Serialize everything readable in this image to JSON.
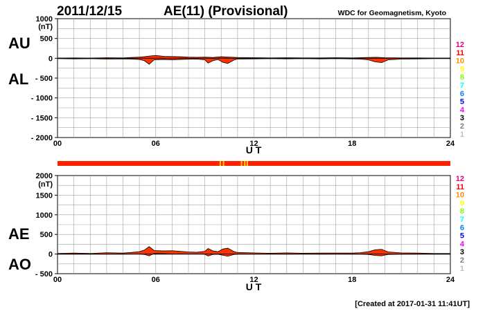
{
  "header": {
    "date": "2011/12/15",
    "title": "AE(11) (Provisional)",
    "source": "WDC for Geomagnetism, Kyoto"
  },
  "footer": {
    "created": "[Created at 2017-01-31 11:41UT]"
  },
  "station_scale": {
    "labels": [
      "12",
      "11",
      "10",
      "9",
      "8",
      "7",
      "6",
      "5",
      "4",
      "3",
      "2",
      "1"
    ],
    "colors": [
      "#e4007f",
      "#ff0000",
      "#ff8c00",
      "#ffff00",
      "#7fff00",
      "#00ffff",
      "#0080ff",
      "#0000ff",
      "#ff00ff",
      "#000000",
      "#808080",
      "#c0c0c0"
    ]
  },
  "station_bar": {
    "base_color": "#ff2000",
    "highlight_color": "#ffd700",
    "highlight_hours": [
      9.9,
      10.1,
      11.2,
      11.4,
      11.55
    ]
  },
  "chart_data": [
    {
      "type": "area",
      "panel": "AU/AL",
      "side_labels": [
        "AU",
        "AL"
      ],
      "unit": "(nT)",
      "xlabel": "U T",
      "ylim": [
        -2000,
        1000
      ],
      "yticks": [
        1000,
        500,
        0,
        -500,
        -1000,
        -1500,
        -2000
      ],
      "ytick_labels": [
        "1000",
        "500",
        "0",
        "- 500",
        "- 1000",
        "- 1500",
        "- 2000"
      ],
      "xlim": [
        0,
        24
      ],
      "xticks": [
        0,
        6,
        12,
        18,
        24
      ],
      "xtick_labels": [
        "00",
        "06",
        "12",
        "18",
        "24"
      ],
      "grid": true,
      "series": [
        {
          "x": [
            0,
            1,
            2,
            3,
            4,
            4.5,
            5,
            5.3,
            5.7,
            6,
            6.5,
            7,
            7.5,
            8,
            8.5,
            9,
            9.5,
            10,
            10.5,
            11,
            12,
            13,
            14,
            15,
            16,
            17,
            18,
            19,
            19.5,
            20,
            21,
            22,
            23,
            24
          ],
          "values": [
            5,
            10,
            5,
            15,
            10,
            20,
            30,
            40,
            60,
            70,
            50,
            45,
            40,
            30,
            25,
            30,
            20,
            40,
            30,
            20,
            15,
            10,
            15,
            10,
            10,
            15,
            10,
            20,
            25,
            15,
            10,
            10,
            5,
            5
          ]
        },
        {
          "x": [
            0,
            1,
            2,
            3,
            4,
            4.5,
            5,
            5.3,
            5.6,
            5.9,
            6.5,
            7,
            7.5,
            8,
            8.5,
            9,
            9.2,
            9.5,
            9.8,
            10.1,
            10.4,
            10.8,
            11,
            12,
            13,
            14,
            15,
            16,
            17,
            18,
            18.5,
            19,
            19.4,
            19.8,
            20.2,
            21,
            22,
            23,
            24
          ],
          "values": [
            -10,
            -15,
            -10,
            -20,
            -15,
            -20,
            -30,
            -60,
            -150,
            -40,
            -30,
            -40,
            -30,
            -25,
            -20,
            -40,
            -120,
            -60,
            -30,
            -100,
            -130,
            -40,
            -20,
            -15,
            -10,
            -15,
            -10,
            -15,
            -10,
            -15,
            -20,
            -40,
            -90,
            -110,
            -40,
            -20,
            -15,
            -10,
            -10
          ]
        }
      ]
    },
    {
      "type": "area",
      "panel": "AE/AO",
      "side_labels": [
        "AE",
        "AO"
      ],
      "unit": "(nT)",
      "xlabel": "U T",
      "ylim": [
        -500,
        2000
      ],
      "yticks": [
        2000,
        1500,
        1000,
        500,
        0,
        -500
      ],
      "ytick_labels": [
        "2000",
        "1500",
        "1000",
        "500",
        "0",
        "- 500"
      ],
      "xlim": [
        0,
        24
      ],
      "xticks": [
        0,
        6,
        12,
        18,
        24
      ],
      "xtick_labels": [
        "00",
        "06",
        "12",
        "18",
        "24"
      ],
      "grid": true,
      "series": [
        {
          "x": [
            0,
            1,
            2,
            3,
            4,
            4.5,
            5,
            5.3,
            5.6,
            5.9,
            6.5,
            7,
            7.5,
            8,
            8.5,
            9,
            9.2,
            9.5,
            9.8,
            10.1,
            10.4,
            10.8,
            11,
            12,
            13,
            14,
            15,
            16,
            17,
            18,
            18.5,
            19,
            19.4,
            19.8,
            20.2,
            21,
            22,
            23,
            24
          ],
          "values": [
            15,
            25,
            15,
            35,
            25,
            40,
            60,
            100,
            190,
            90,
            80,
            85,
            70,
            55,
            45,
            70,
            140,
            80,
            60,
            130,
            150,
            60,
            40,
            30,
            20,
            30,
            20,
            25,
            25,
            25,
            35,
            60,
            110,
            120,
            55,
            30,
            25,
            15,
            15
          ]
        },
        {
          "x": [
            0,
            1,
            2,
            3,
            4,
            4.5,
            5,
            5.3,
            5.6,
            5.9,
            6.5,
            7,
            7.5,
            8,
            8.5,
            9,
            9.2,
            9.5,
            9.8,
            10.1,
            10.4,
            10.8,
            11,
            12,
            13,
            14,
            15,
            16,
            17,
            18,
            18.5,
            19,
            19.4,
            19.8,
            20.2,
            21,
            22,
            23,
            24
          ],
          "values": [
            -3,
            -3,
            -3,
            -3,
            -3,
            0,
            0,
            -10,
            -45,
            15,
            10,
            3,
            5,
            3,
            3,
            -5,
            -50,
            -10,
            -5,
            -30,
            -55,
            -10,
            -3,
            -3,
            0,
            -3,
            0,
            -3,
            0,
            -3,
            -3,
            -10,
            -35,
            -45,
            -10,
            -5,
            -3,
            -3,
            -3
          ]
        }
      ]
    }
  ]
}
